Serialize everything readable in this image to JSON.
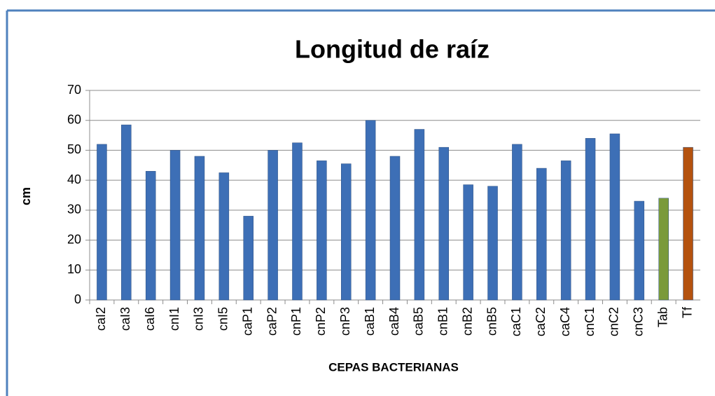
{
  "chart_data": {
    "type": "bar",
    "title": "Longitud de raíz",
    "x_label": "CEPAS BACTERIANAS",
    "y_label": "cm",
    "categories": [
      "caI2",
      "caI3",
      "caI6",
      "cnI1",
      "cnI3",
      "cnI5",
      "caP1",
      "caP2",
      "cnP1",
      "cnP2",
      "cnP3",
      "caB1",
      "caB4",
      "caB5",
      "cnB1",
      "cnB2",
      "cnB5",
      "caC1",
      "caC2",
      "caC4",
      "cnC1",
      "cnC2",
      "cnC3",
      "Tab",
      "Tf"
    ],
    "values": [
      52,
      58.5,
      43,
      50,
      48,
      42.5,
      28,
      50,
      52.5,
      46.5,
      45.5,
      60,
      48,
      57,
      51,
      38.5,
      38,
      52,
      44,
      46.5,
      54,
      55.5,
      33,
      34,
      51
    ],
    "colors": [
      "#3d6fb6",
      "#3d6fb6",
      "#3d6fb6",
      "#3d6fb6",
      "#3d6fb6",
      "#3d6fb6",
      "#3d6fb6",
      "#3d6fb6",
      "#3d6fb6",
      "#3d6fb6",
      "#3d6fb6",
      "#3d6fb6",
      "#3d6fb6",
      "#3d6fb6",
      "#3d6fb6",
      "#3d6fb6",
      "#3d6fb6",
      "#3d6fb6",
      "#3d6fb6",
      "#3d6fb6",
      "#3d6fb6",
      "#3d6fb6",
      "#3d6fb6",
      "#7a9a3a",
      "#b4520f"
    ],
    "ylim": [
      0,
      70
    ],
    "yticks": [
      0,
      10,
      20,
      30,
      40,
      50,
      60,
      70
    ],
    "grid": true
  }
}
